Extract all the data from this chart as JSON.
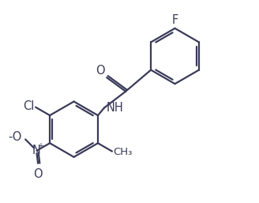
{
  "bg_color": "#ffffff",
  "line_color": "#3a3a5a",
  "line_width": 1.6,
  "font_size": 10.5,
  "fig_width": 3.28,
  "fig_height": 2.57,
  "dpi": 100,
  "xlim": [
    0,
    10
  ],
  "ylim": [
    0,
    8
  ]
}
